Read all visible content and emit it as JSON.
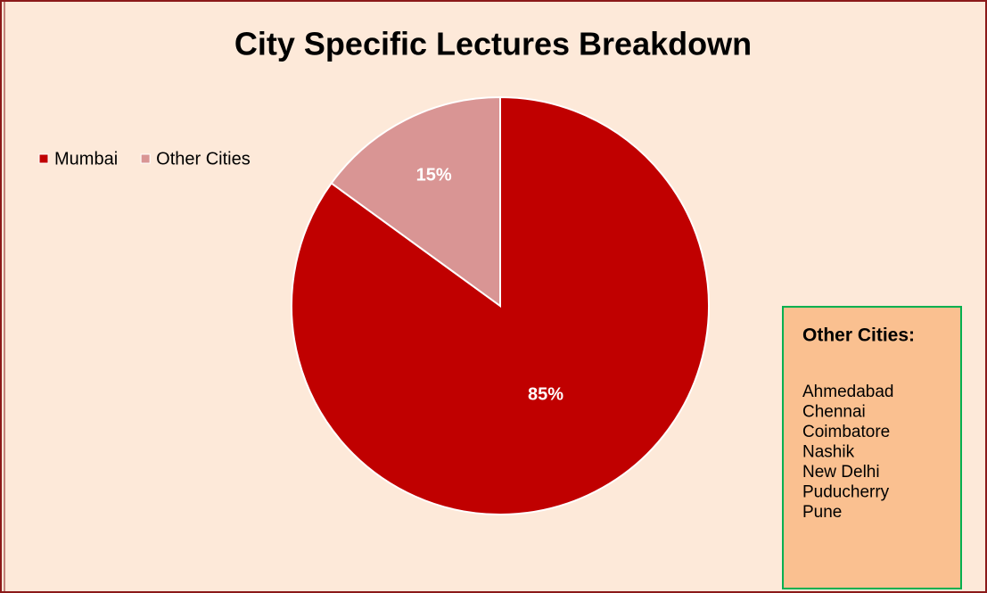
{
  "chart_data": {
    "type": "pie",
    "title": "City Specific Lectures Breakdown",
    "categories": [
      "Mumbai",
      "Other Cities"
    ],
    "values": [
      85,
      15
    ],
    "value_labels": [
      "85%",
      "15%"
    ],
    "colors": [
      "#c00000",
      "#d99594"
    ],
    "legend": "upper left",
    "annotation": {
      "title": "Other Cities:",
      "items": [
        "Ahmedabad",
        "Chennai",
        "Coimbatore",
        "Nashik",
        "New Delhi",
        "Puducherry",
        "Pune"
      ]
    }
  }
}
